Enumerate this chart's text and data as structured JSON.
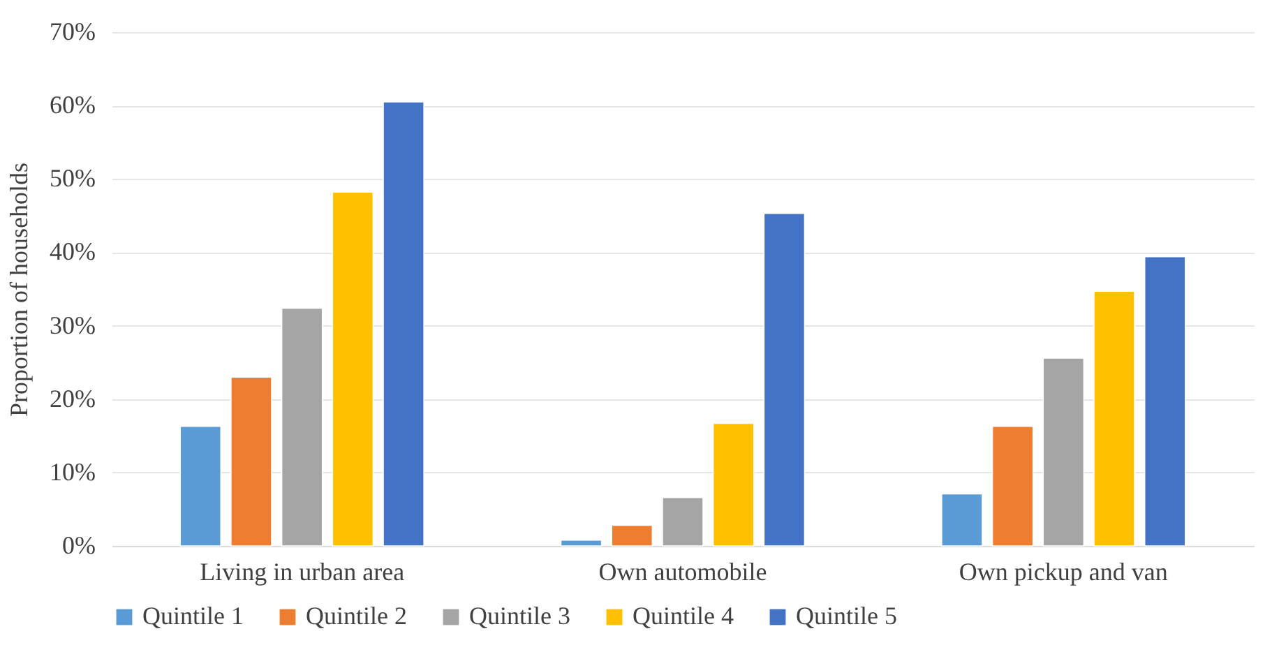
{
  "chart_data": {
    "type": "bar",
    "ylabel": "Proportion of households",
    "categories": [
      "Living in urban area",
      "Own automobile",
      "Own pickup and van"
    ],
    "series": [
      {
        "name": "Quintile 1",
        "color": "#5b9bd5",
        "values": [
          16.3,
          0.8,
          7.1
        ]
      },
      {
        "name": "Quintile 2",
        "color": "#ed7d31",
        "values": [
          23.0,
          2.8,
          16.3
        ]
      },
      {
        "name": "Quintile 3",
        "color": "#a5a5a5",
        "values": [
          32.4,
          6.6,
          25.6
        ]
      },
      {
        "name": "Quintile 4",
        "color": "#ffc000",
        "values": [
          48.2,
          16.7,
          34.7
        ]
      },
      {
        "name": "Quintile 5",
        "color": "#4472c4",
        "values": [
          60.5,
          45.3,
          39.4
        ]
      }
    ],
    "ylim": [
      0,
      70
    ],
    "yticks": [
      {
        "value": 0,
        "label": "0%"
      },
      {
        "value": 10,
        "label": "10%"
      },
      {
        "value": 20,
        "label": "20%"
      },
      {
        "value": 30,
        "label": "30%"
      },
      {
        "value": 40,
        "label": "40%"
      },
      {
        "value": 50,
        "label": "50%"
      },
      {
        "value": 60,
        "label": "60%"
      },
      {
        "value": 70,
        "label": "70%"
      }
    ],
    "grid": "y",
    "legend": "bottom"
  }
}
